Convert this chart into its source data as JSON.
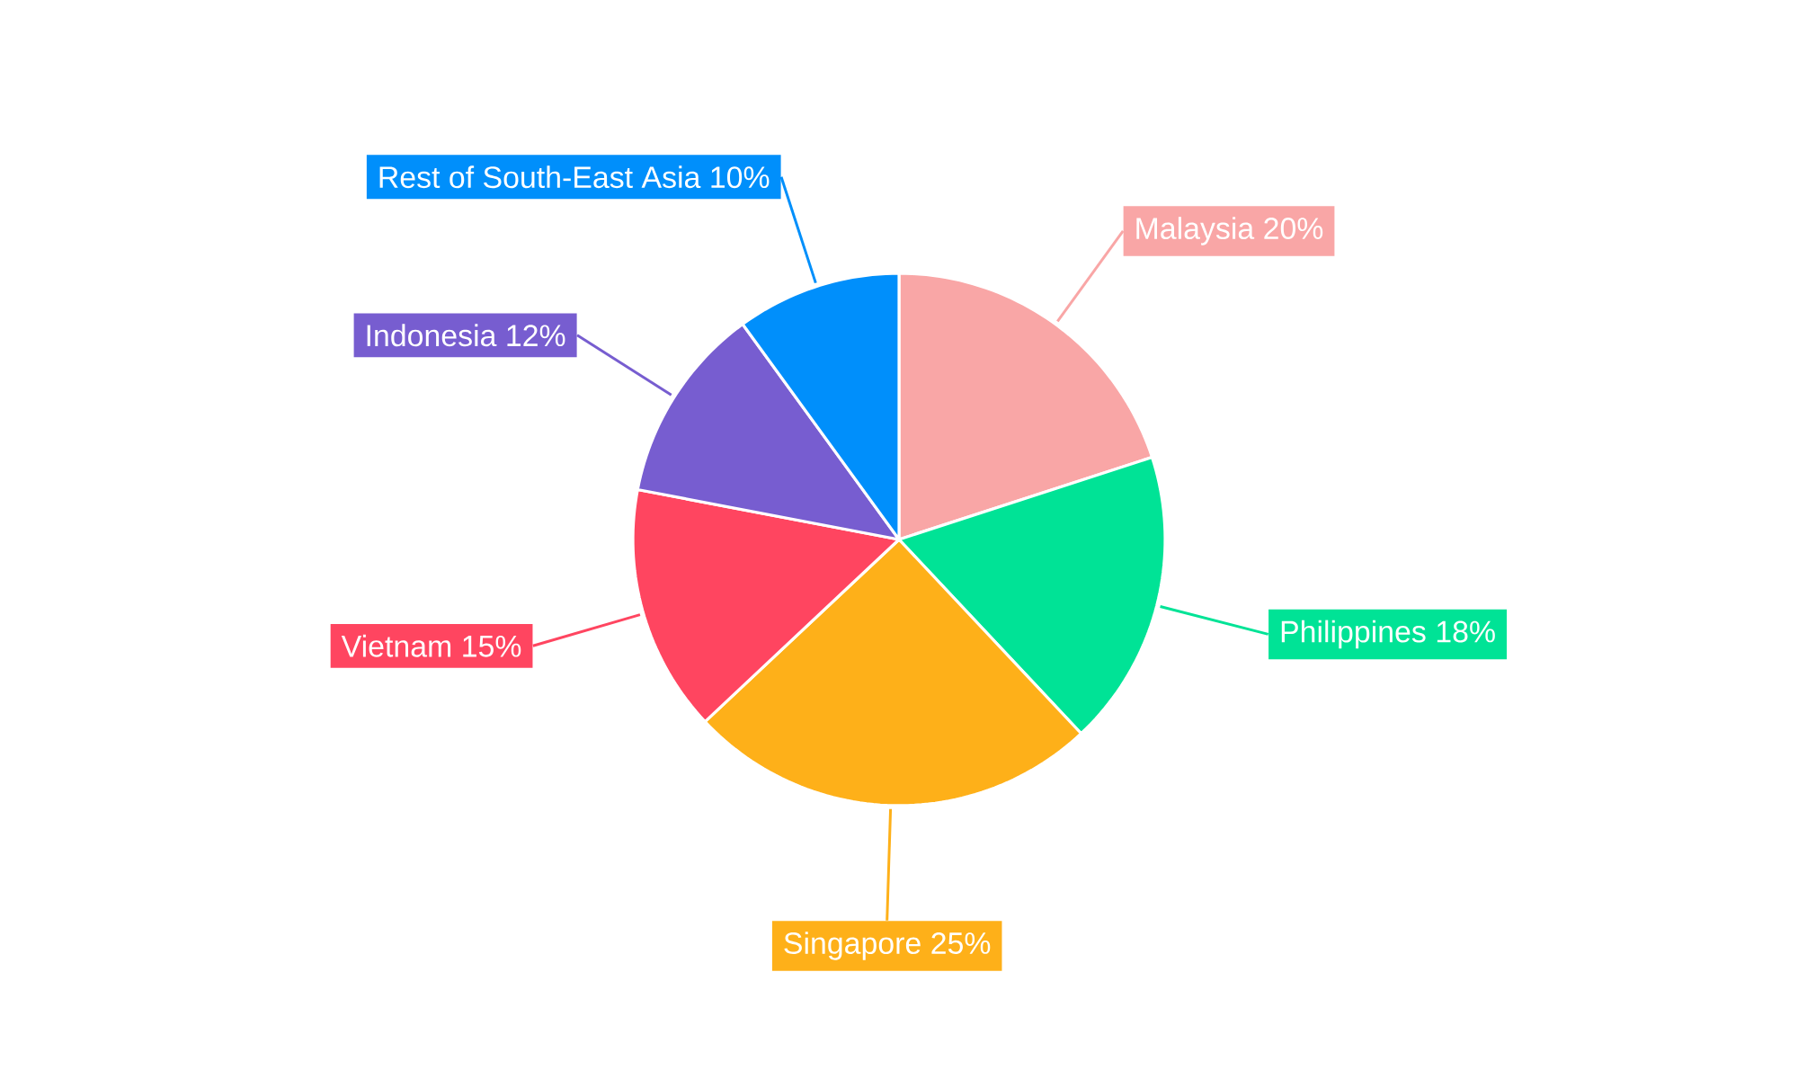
{
  "chart_data": {
    "type": "pie",
    "categories": [
      "Malaysia",
      "Philippines",
      "Singapore",
      "Vietnam",
      "Indonesia",
      "Rest of South-East Asia"
    ],
    "values": [
      20,
      18,
      25,
      15,
      12,
      10
    ],
    "value_labels": [
      "20%",
      "18%",
      "25%",
      "15%",
      "12%",
      "10%"
    ],
    "colors": [
      "#f9a6a6",
      "#00e396",
      "#feb019",
      "#ff4560",
      "#775dd0",
      "#008ffb"
    ]
  }
}
